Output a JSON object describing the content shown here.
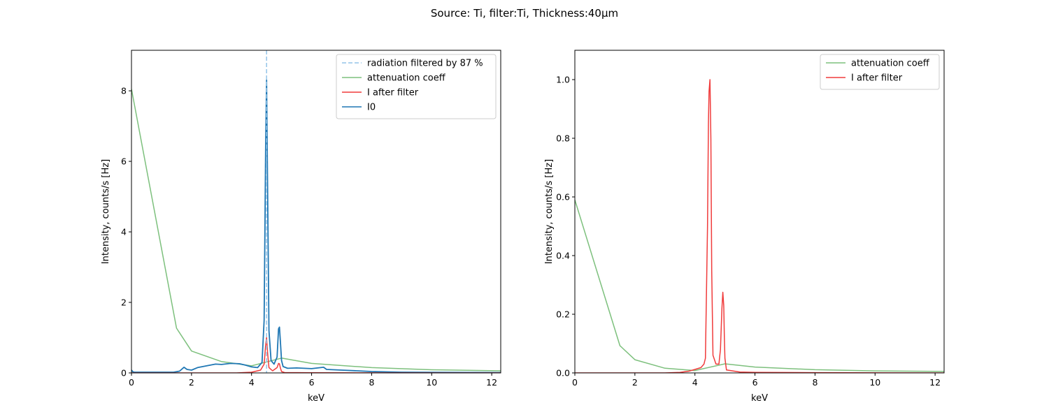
{
  "figure": {
    "suptitle": "Source: Ti, filter:Ti, Thickness:40µm"
  },
  "colors": {
    "i0": "#1f77b4",
    "after_filter": "#f03c3c",
    "attenuation": "#7dc07d",
    "filtered_line": "#93c4e8"
  },
  "chart_data": [
    {
      "type": "line",
      "xlabel": "keV",
      "ylabel": "Intensity, counts/s [Hz]",
      "xlim": [
        0,
        12.3
      ],
      "ylim": [
        0,
        9.15
      ],
      "xticks": [
        0,
        2,
        4,
        6,
        8,
        10,
        12
      ],
      "yticks": [
        0,
        2,
        4,
        6,
        8
      ],
      "legend_position": "top-right",
      "legend": [
        "radiation filtered by 87 %",
        "attenuation coeff",
        "I after filter",
        "I0"
      ],
      "vline": {
        "name": "radiation filtered by 87 %",
        "x": 4.5,
        "style": "dashed"
      },
      "series": [
        {
          "name": "attenuation coeff",
          "x": [
            0,
            1.5,
            2,
            3,
            4,
            5,
            6,
            8,
            10,
            12.3
          ],
          "y": [
            8.05,
            1.27,
            0.62,
            0.32,
            0.2,
            0.42,
            0.27,
            0.15,
            0.09,
            0.06
          ]
        },
        {
          "name": "I after filter",
          "x": [
            0,
            3.5,
            4.0,
            4.3,
            4.42,
            4.47,
            4.5,
            4.53,
            4.58,
            4.7,
            4.85,
            4.9,
            4.93,
            4.96,
            5.0,
            5.1,
            6.0,
            8.0,
            12.3
          ],
          "y": [
            0,
            0,
            0.02,
            0.08,
            0.25,
            0.8,
            1.0,
            0.6,
            0.15,
            0.06,
            0.15,
            0.27,
            0.26,
            0.14,
            0.04,
            0.01,
            0.005,
            0.002,
            0
          ]
        },
        {
          "name": "I0",
          "x": [
            0,
            0.05,
            0.1,
            1.4,
            1.6,
            1.75,
            1.85,
            2.0,
            2.2,
            2.5,
            2.8,
            3.0,
            3.3,
            3.6,
            3.8,
            4.0,
            4.2,
            4.35,
            4.42,
            4.47,
            4.5,
            4.53,
            4.58,
            4.65,
            4.75,
            4.85,
            4.9,
            4.93,
            4.96,
            5.0,
            5.05,
            5.2,
            5.5,
            6.0,
            6.4,
            6.5,
            7.0,
            8.0,
            9.0,
            12.3
          ],
          "y": [
            0.08,
            0.03,
            0.02,
            0.02,
            0.05,
            0.16,
            0.1,
            0.08,
            0.15,
            0.2,
            0.25,
            0.24,
            0.27,
            0.26,
            0.22,
            0.17,
            0.15,
            0.3,
            1.5,
            6.5,
            8.3,
            5.5,
            1.2,
            0.35,
            0.25,
            0.45,
            1.25,
            1.3,
            0.9,
            0.35,
            0.18,
            0.13,
            0.14,
            0.12,
            0.16,
            0.1,
            0.08,
            0.04,
            0.02,
            0.01
          ]
        }
      ]
    },
    {
      "type": "line",
      "xlabel": "keV",
      "ylabel": "Intensity, counts/s [Hz]",
      "xlim": [
        0,
        12.3
      ],
      "ylim": [
        0,
        1.1
      ],
      "xticks": [
        0,
        2,
        4,
        6,
        8,
        10,
        12
      ],
      "yticks": [
        0.0,
        0.2,
        0.4,
        0.6,
        0.8,
        1.0
      ],
      "ytick_labels": [
        "0.0",
        "0.2",
        "0.4",
        "0.6",
        "0.8",
        "1.0"
      ],
      "legend_position": "top-right",
      "legend": [
        "attenuation coeff",
        "I after filter"
      ],
      "series": [
        {
          "name": "attenuation coeff",
          "x": [
            0,
            1.5,
            2,
            3,
            4,
            5,
            6,
            8,
            10,
            12.3
          ],
          "y": [
            0.59,
            0.093,
            0.045,
            0.016,
            0.008,
            0.031,
            0.02,
            0.011,
            0.007,
            0.005
          ]
        },
        {
          "name": "I after filter",
          "x": [
            0,
            3.0,
            3.5,
            3.8,
            4.0,
            4.2,
            4.3,
            4.35,
            4.42,
            4.45,
            4.47,
            4.5,
            4.53,
            4.56,
            4.6,
            4.7,
            4.8,
            4.85,
            4.9,
            4.93,
            4.96,
            4.98,
            5.0,
            5.05,
            5.5,
            6.0,
            8.0,
            12.3
          ],
          "y": [
            0,
            0,
            0.002,
            0.006,
            0.012,
            0.018,
            0.03,
            0.05,
            0.5,
            0.85,
            0.96,
            1.0,
            0.8,
            0.35,
            0.06,
            0.03,
            0.03,
            0.08,
            0.22,
            0.275,
            0.23,
            0.12,
            0.05,
            0.01,
            0.003,
            0.002,
            0.001,
            0
          ]
        }
      ]
    }
  ]
}
